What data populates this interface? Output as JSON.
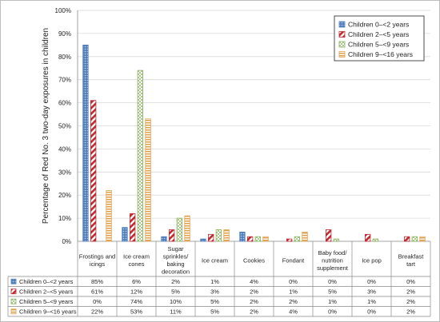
{
  "chart_data": {
    "type": "bar",
    "ylabel": "Percentage of Red No. 3 two-day exposures in children",
    "ylim": [
      0,
      100
    ],
    "yticks": [
      "0%",
      "10%",
      "20%",
      "30%",
      "40%",
      "50%",
      "60%",
      "70%",
      "80%",
      "90%",
      "100%"
    ],
    "categories": [
      [
        "Frostings and",
        "icings"
      ],
      [
        "Ice cream",
        "cones"
      ],
      [
        "Sugar",
        "sprinkles/",
        "baking",
        "decoration"
      ],
      [
        "Ice cream"
      ],
      [
        "Cookies"
      ],
      [
        "Fondant"
      ],
      [
        "Baby food/",
        "nutrition",
        "supplement"
      ],
      [
        "Ice pop"
      ],
      [
        "Breakfast",
        "tart"
      ]
    ],
    "series": [
      {
        "name": "Children 0–<2 years",
        "color": "#4f7fbf",
        "pattern": "dots",
        "values": [
          85,
          6,
          2,
          1,
          4,
          0,
          0,
          0,
          0
        ],
        "labels": [
          "85%",
          "6%",
          "2%",
          "1%",
          "4%",
          "0%",
          "0%",
          "0%",
          "0%"
        ]
      },
      {
        "name": "Children 2–<5 years",
        "color": "#c0292f",
        "pattern": "diagonal",
        "values": [
          61,
          12,
          5,
          3,
          2,
          1,
          5,
          3,
          2
        ],
        "labels": [
          "61%",
          "12%",
          "5%",
          "3%",
          "2%",
          "1%",
          "5%",
          "3%",
          "2%"
        ]
      },
      {
        "name": "Children 5–<9 years",
        "color": "#86b25a",
        "pattern": "checker",
        "values": [
          0,
          74,
          10,
          5,
          2,
          2,
          1,
          1,
          2
        ],
        "labels": [
          "0%",
          "74%",
          "10%",
          "5%",
          "2%",
          "2%",
          "1%",
          "1%",
          "2%"
        ]
      },
      {
        "name": "Children 9–<16 years",
        "color": "#e0a04a",
        "pattern": "horizontal",
        "values": [
          22,
          53,
          11,
          5,
          2,
          4,
          0,
          0,
          2
        ],
        "labels": [
          "22%",
          "53%",
          "11%",
          "5%",
          "2%",
          "4%",
          "0%",
          "0%",
          "2%"
        ]
      }
    ],
    "legend_position": "top-right",
    "grid": true
  }
}
